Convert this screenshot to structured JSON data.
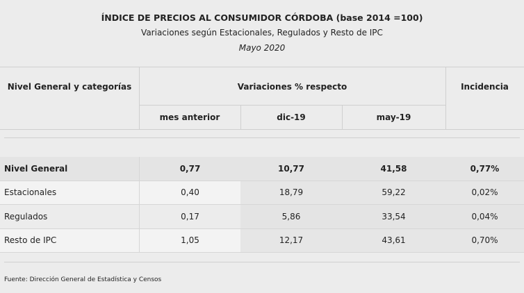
{
  "header": {
    "title": "ÍNDICE DE PRECIOS AL CONSUMIDOR CÓRDOBA (base 2014 =100)",
    "subtitle": "Variaciones según Estacionales, Regulados y Resto de IPC",
    "date": "Mayo 2020"
  },
  "table": {
    "col_header": "Nivel General y categorías",
    "group_header": "Variaciones % respecto",
    "sub_headers": [
      "mes anterior",
      "dic-19",
      "may-19"
    ],
    "incidence_header": "Incidencia",
    "rows": [
      [
        "Nivel General",
        "0,77",
        "10,77",
        "41,58",
        "0,77%"
      ],
      [
        "Estacionales",
        "0,40",
        "18,79",
        "59,22",
        "0,02%"
      ],
      [
        "Regulados",
        "0,17",
        "5,86",
        "33,54",
        "0,04%"
      ],
      [
        "Resto de IPC",
        "1,05",
        "12,17",
        "43,61",
        "0,70%"
      ]
    ]
  },
  "footer": {
    "source": "Fuente: Dirección General de Estadística y Censos"
  }
}
